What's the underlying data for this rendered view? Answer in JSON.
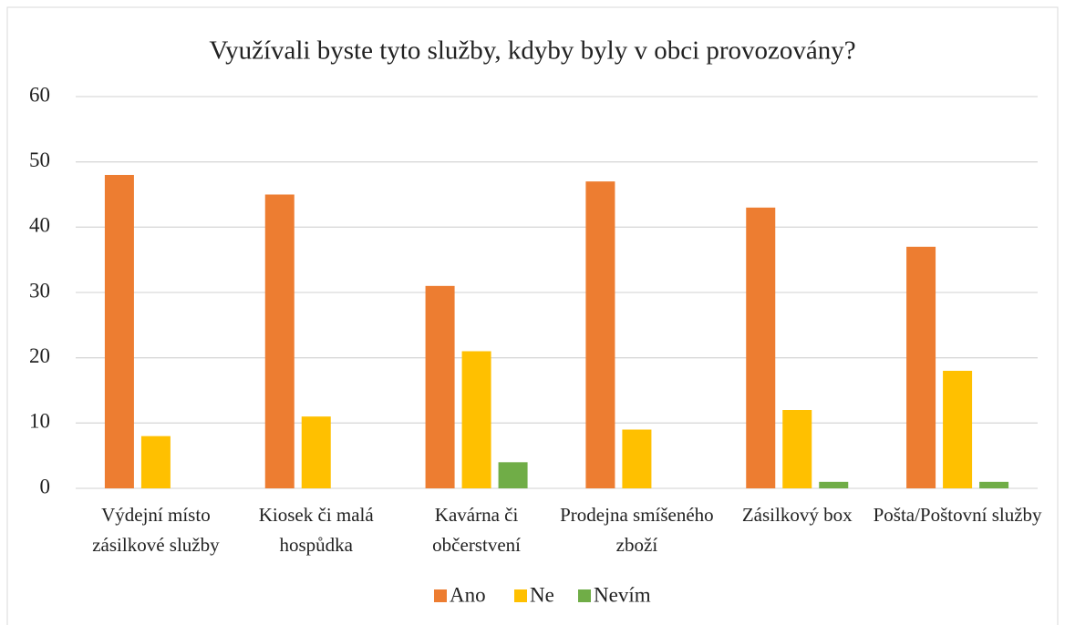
{
  "chart_data": {
    "type": "bar",
    "title": "Využívali byste tyto služby, kdyby byly v obci provozovány?",
    "categories": [
      "Výdejní místo zásilkové služby",
      "Kiosek či malá hospůdka",
      "Kavárna či občerstvení",
      "Prodejna smíšeného zboží",
      "Zásilkový box",
      "Pošta/Poštovní služby"
    ],
    "series": [
      {
        "name": "Ano",
        "color": "#ed7d31",
        "values": [
          48,
          45,
          31,
          47,
          43,
          37
        ]
      },
      {
        "name": "Ne",
        "color": "#ffc000",
        "values": [
          8,
          11,
          21,
          9,
          12,
          18
        ]
      },
      {
        "name": "Nevím",
        "color": "#70ad47",
        "values": [
          0,
          0,
          4,
          0,
          1,
          1
        ]
      }
    ],
    "ylim": [
      0,
      60
    ],
    "yticks": [
      0,
      10,
      20,
      30,
      40,
      50,
      60
    ],
    "grid": true,
    "legend": "bottom"
  }
}
